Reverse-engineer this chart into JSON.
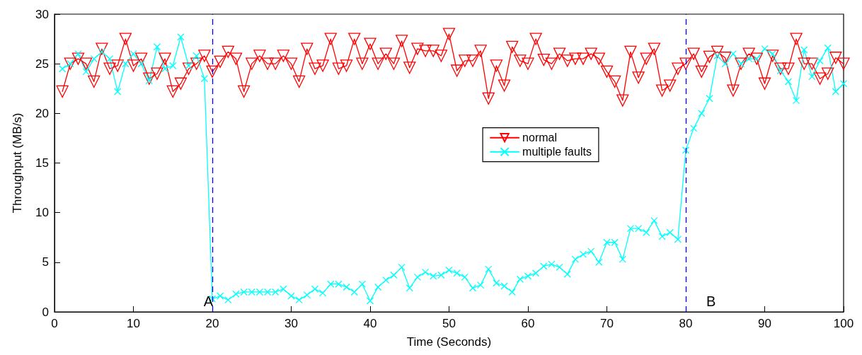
{
  "chart_data": {
    "type": "line",
    "xlabel": "Time (Seconds)",
    "ylabel": "Throughput (MB/s)",
    "x": [
      1,
      2,
      3,
      4,
      5,
      6,
      7,
      8,
      9,
      10,
      11,
      12,
      13,
      14,
      15,
      16,
      17,
      18,
      19,
      20,
      21,
      22,
      23,
      24,
      25,
      26,
      27,
      28,
      29,
      30,
      31,
      32,
      33,
      34,
      35,
      36,
      37,
      38,
      39,
      40,
      41,
      42,
      43,
      44,
      45,
      46,
      47,
      48,
      49,
      50,
      51,
      52,
      53,
      54,
      55,
      56,
      57,
      58,
      59,
      60,
      61,
      62,
      63,
      64,
      65,
      66,
      67,
      68,
      69,
      70,
      71,
      72,
      73,
      74,
      75,
      76,
      77,
      78,
      79,
      80,
      81,
      82,
      83,
      84,
      85,
      86,
      87,
      88,
      89,
      90,
      91,
      92,
      93,
      94,
      95,
      96,
      97,
      98,
      99,
      100
    ],
    "series": [
      {
        "name": "normal",
        "color": "#ff0000",
        "marker": "triangle",
        "values": [
          22.2,
          25,
          25.5,
          25,
          23.2,
          26.5,
          24.5,
          24.8,
          27.5,
          24.8,
          25.5,
          23.5,
          24,
          25.5,
          22.2,
          23,
          24.5,
          25,
          25.8,
          24.2,
          25.2,
          26.2,
          25.5,
          22.2,
          25,
          25.8,
          25,
          25,
          25.8,
          25,
          23.2,
          26.5,
          24.5,
          24.8,
          27.5,
          24.5,
          24.8,
          27.5,
          25,
          27,
          25,
          26,
          25,
          27.3,
          24.6,
          26.5,
          26.3,
          26.3,
          25.8,
          28,
          24.3,
          25.3,
          25.3,
          26.3,
          21.5,
          24.8,
          22.8,
          26.7,
          25.3,
          25,
          27.5,
          25.4,
          25,
          26,
          25.3,
          25.5,
          25.5,
          26,
          25.5,
          24.2,
          23.2,
          21.3,
          26.2,
          23.6,
          25.5,
          26.5,
          22.3,
          22.8,
          24.5,
          25,
          26,
          24.2,
          25.7,
          26.2,
          25.6,
          22.3,
          25,
          26,
          25.5,
          23,
          25.8,
          24.5,
          24.5,
          27.5,
          25,
          25,
          23.5,
          24,
          25.6,
          25
        ]
      },
      {
        "name": "multiple faults",
        "color": "#00ffff",
        "marker": "cross",
        "values": [
          24.5,
          25,
          26,
          24.2,
          25.5,
          26.2,
          25.5,
          22.2,
          25,
          26,
          25,
          23.3,
          26.7,
          24.5,
          24.8,
          27.7,
          24.8,
          25.8,
          23.5,
          1.3,
          1.6,
          1.2,
          1.8,
          2,
          2,
          2,
          2,
          2,
          2.3,
          1.6,
          1.2,
          1.7,
          2.3,
          1.9,
          2.8,
          2.8,
          2.5,
          2,
          2.8,
          1.1,
          2.5,
          3.2,
          3.7,
          4.5,
          2.4,
          3.5,
          4,
          3.6,
          3.7,
          4.2,
          3.9,
          3.5,
          2.4,
          2.7,
          4.3,
          2.9,
          2.6,
          2,
          3.3,
          3.6,
          3.9,
          4.6,
          4.8,
          4.5,
          3.8,
          5.3,
          5.8,
          6.1,
          5,
          7,
          7,
          5.3,
          8.4,
          8.4,
          8,
          9.2,
          7.6,
          8,
          7.3,
          16.3,
          18.5,
          20,
          21.5,
          25.8,
          25,
          26,
          25,
          25.5,
          25.5,
          26.5,
          26,
          24.3,
          23.2,
          21.3,
          26.4,
          23.7,
          25.3,
          26.6,
          22.2,
          23
        ]
      }
    ],
    "xlim": [
      0,
      100
    ],
    "xticks": [
      0,
      10,
      20,
      30,
      40,
      50,
      60,
      70,
      80,
      90,
      100
    ],
    "ylim": [
      0,
      30
    ],
    "yticks": [
      0,
      5,
      10,
      15,
      20,
      25,
      30
    ],
    "ref_lines": [
      {
        "axis": "x",
        "value": 20,
        "label": "A",
        "color": "#0000ff",
        "line_style": "dashed"
      },
      {
        "axis": "x",
        "value": 80,
        "label": "B",
        "color": "#0000ff",
        "line_style": "dashed"
      }
    ],
    "grid": false,
    "legend": "center",
    "line_style": "solid"
  }
}
